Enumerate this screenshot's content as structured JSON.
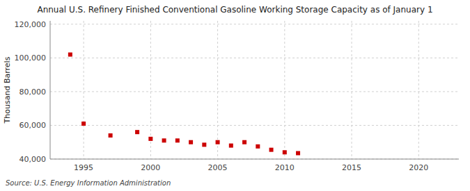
{
  "chart_data": {
    "type": "scatter",
    "title": "Annual U.S. Refinery Finished Conventional Gasoline Working Storage Capacity as of January 1",
    "ylabel": "Thousand Barrels",
    "source": "Source: U.S. Energy Information Administration",
    "x": [
      1994,
      1995,
      1997,
      1999,
      2000,
      2001,
      2002,
      2003,
      2004,
      2005,
      2006,
      2007,
      2008,
      2009,
      2010,
      2011
    ],
    "values": [
      102000,
      61000,
      54000,
      56000,
      52000,
      51000,
      51000,
      50000,
      48500,
      50000,
      48000,
      50000,
      47500,
      45500,
      44000,
      43500
    ],
    "color": "#cc0000",
    "marker": "square",
    "xlim": [
      1992.5,
      2023
    ],
    "ylim": [
      40000,
      122000
    ],
    "xticks": [
      1995,
      2000,
      2005,
      2010,
      2015,
      2020
    ],
    "yticks": [
      {
        "value": 40000,
        "label": "40,000"
      },
      {
        "value": 60000,
        "label": "60,000"
      },
      {
        "value": 80000,
        "label": "80,000"
      },
      {
        "value": 100000,
        "label": "100,000"
      },
      {
        "value": 120000,
        "label": "120,000"
      }
    ],
    "grid": true
  }
}
